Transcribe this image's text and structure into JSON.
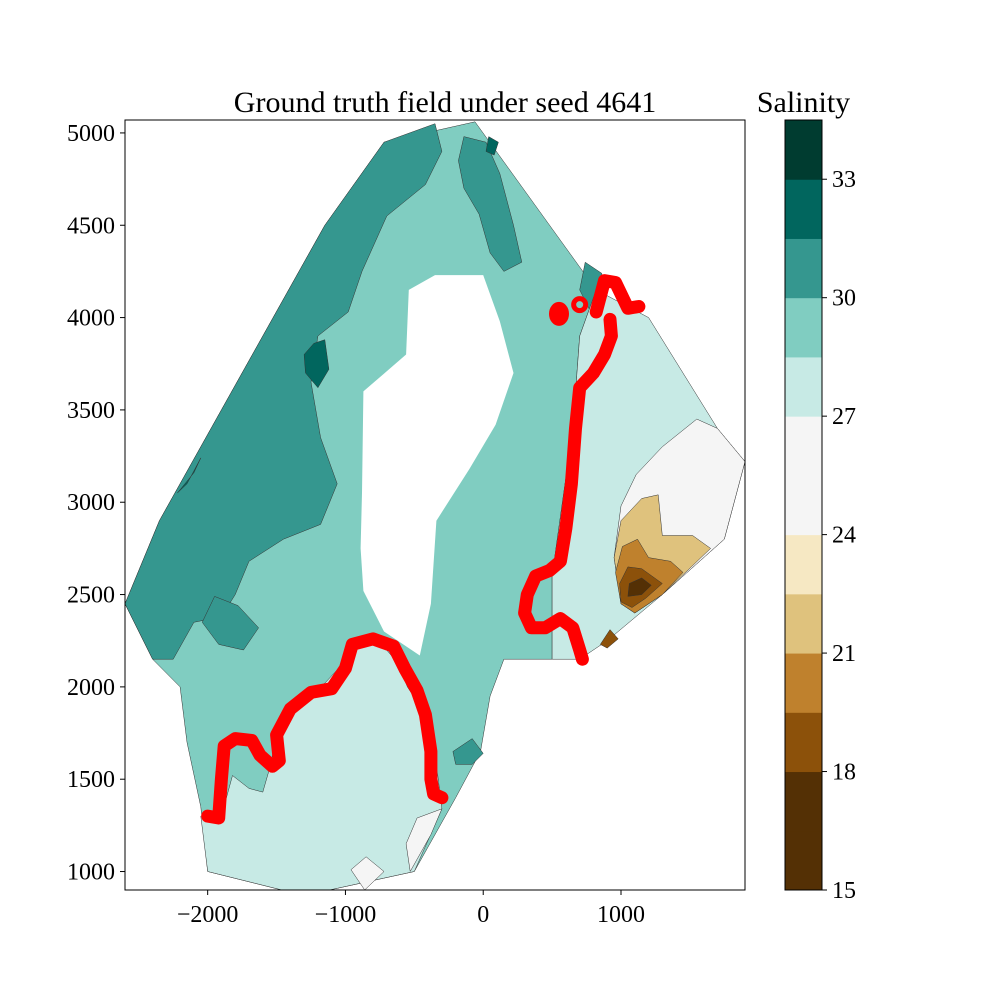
{
  "chart_data": {
    "type": "contourf",
    "title": "Ground truth field under seed 4641",
    "xlabel": "",
    "ylabel": "",
    "xlim": [
      -2600,
      1900
    ],
    "ylim": [
      900,
      5070
    ],
    "x_ticks": [
      -2000,
      -1000,
      0,
      1000
    ],
    "y_ticks": [
      1000,
      1500,
      2000,
      2500,
      3000,
      3500,
      4000,
      4500,
      5000
    ],
    "colorbar": {
      "title": "Salinity",
      "range": [
        15,
        34.5
      ],
      "ticks": [
        15,
        18,
        21,
        24,
        27,
        30,
        33
      ],
      "levels": [
        15,
        16.5,
        18,
        19.5,
        21,
        22.5,
        24,
        25.5,
        27,
        28.5,
        30,
        31.5,
        33,
        34.5
      ],
      "colors": [
        "#543005",
        "#8c510a",
        "#bf812d",
        "#dfc27d",
        "#f6e8c3",
        "#f5f5f5",
        "#c7eae5",
        "#80cdc1",
        "#35978f",
        "#01665e",
        "#003c30"
      ]
    },
    "domain_boundary": [
      [
        -2600,
        2450
      ],
      [
        -2350,
        2900
      ],
      [
        -1900,
        3500
      ],
      [
        -1150,
        4500
      ],
      [
        -720,
        4950
      ],
      [
        -60,
        5060
      ],
      [
        820,
        4150
      ],
      [
        1200,
        4000
      ],
      [
        1700,
        3400
      ],
      [
        1900,
        3220
      ],
      [
        1750,
        2800
      ],
      [
        1300,
        2500
      ],
      [
        900,
        2250
      ],
      [
        700,
        2150
      ],
      [
        150,
        2150
      ],
      [
        50,
        1950
      ],
      [
        -20,
        1650
      ],
      [
        -200,
        1400
      ],
      [
        -500,
        1000
      ],
      [
        -1300,
        870
      ],
      [
        -2000,
        1000
      ],
      [
        -2050,
        1350
      ],
      [
        -2150,
        1700
      ],
      [
        -2200,
        2000
      ],
      [
        -2400,
        2150
      ],
      [
        -2600,
        2450
      ]
    ],
    "white_hole": [
      [
        -540,
        4150
      ],
      [
        -350,
        4230
      ],
      [
        0,
        4230
      ],
      [
        120,
        3980
      ],
      [
        220,
        3700
      ],
      [
        90,
        3420
      ],
      [
        -100,
        3180
      ],
      [
        -340,
        2900
      ],
      [
        -380,
        2450
      ],
      [
        -460,
        2170
      ],
      [
        -720,
        2300
      ],
      [
        -870,
        2520
      ],
      [
        -890,
        2750
      ],
      [
        -880,
        3050
      ],
      [
        -870,
        3600
      ],
      [
        -560,
        3800
      ],
      [
        -540,
        4150
      ]
    ],
    "regions": [
      {
        "level_range": [
          27,
          28.5
        ],
        "color": "#80cdc1",
        "points": [
          [
            -2600,
            2450
          ],
          [
            -2350,
            2900
          ],
          [
            -1900,
            3500
          ],
          [
            -1150,
            4500
          ],
          [
            -720,
            4950
          ],
          [
            -60,
            5060
          ],
          [
            820,
            4150
          ],
          [
            700,
            3900
          ],
          [
            650,
            3400
          ],
          [
            500,
            2600
          ],
          [
            500,
            2150
          ],
          [
            150,
            2150
          ],
          [
            50,
            1950
          ],
          [
            -20,
            1650
          ],
          [
            -200,
            1400
          ],
          [
            -500,
            1000
          ],
          [
            -1300,
            870
          ],
          [
            -2000,
            1000
          ],
          [
            -2050,
            1350
          ],
          [
            -2150,
            1700
          ],
          [
            -2200,
            2000
          ],
          [
            -2400,
            2150
          ]
        ]
      },
      {
        "level_range": [
          28.5,
          30
        ],
        "color": "#35978f",
        "points": [
          [
            -2600,
            2450
          ],
          [
            -2350,
            2900
          ],
          [
            -1900,
            3500
          ],
          [
            -1150,
            4500
          ],
          [
            -720,
            4950
          ],
          [
            -350,
            5050
          ],
          [
            -300,
            4900
          ],
          [
            -420,
            4720
          ],
          [
            -700,
            4550
          ],
          [
            -880,
            4250
          ],
          [
            -980,
            4030
          ],
          [
            -1200,
            3900
          ],
          [
            -1250,
            3650
          ],
          [
            -1180,
            3350
          ],
          [
            -1060,
            3100
          ],
          [
            -1180,
            2880
          ],
          [
            -1450,
            2800
          ],
          [
            -1700,
            2680
          ],
          [
            -1800,
            2500
          ],
          [
            -1900,
            2380
          ],
          [
            -2100,
            2350
          ],
          [
            -2250,
            2150
          ],
          [
            -2400,
            2150
          ]
        ]
      },
      {
        "level_range": [
          28.5,
          30
        ],
        "color": "#35978f",
        "points": [
          [
            -140,
            4980
          ],
          [
            20,
            4950
          ],
          [
            120,
            4780
          ],
          [
            220,
            4500
          ],
          [
            280,
            4300
          ],
          [
            150,
            4250
          ],
          [
            50,
            4350
          ],
          [
            -30,
            4560
          ],
          [
            -140,
            4700
          ],
          [
            -180,
            4850
          ]
        ]
      },
      {
        "level_range": [
          28.5,
          30
        ],
        "color": "#35978f",
        "points": [
          [
            -1950,
            2490
          ],
          [
            -1780,
            2440
          ],
          [
            -1630,
            2320
          ],
          [
            -1740,
            2200
          ],
          [
            -1920,
            2230
          ],
          [
            -2040,
            2350
          ]
        ]
      },
      {
        "level_range": [
          28.5,
          30
        ],
        "color": "#35978f",
        "points": [
          [
            -220,
            1650
          ],
          [
            -80,
            1720
          ],
          [
            0,
            1640
          ],
          [
            -80,
            1580
          ],
          [
            -200,
            1580
          ]
        ]
      },
      {
        "level_range": [
          28.5,
          30
        ],
        "color": "#35978f",
        "points": [
          [
            740,
            4300
          ],
          [
            860,
            4240
          ],
          [
            900,
            4080
          ],
          [
            780,
            4030
          ],
          [
            700,
            4150
          ]
        ]
      },
      {
        "level_range": [
          30,
          31.5
        ],
        "color": "#01665e",
        "points": [
          [
            -1230,
            3860
          ],
          [
            -1150,
            3880
          ],
          [
            -1120,
            3720
          ],
          [
            -1200,
            3620
          ],
          [
            -1290,
            3700
          ],
          [
            -1300,
            3800
          ]
        ]
      },
      {
        "level_range": [
          30,
          31.5
        ],
        "color": "#01665e",
        "points": [
          [
            -2220,
            3050
          ],
          [
            -2150,
            3100
          ],
          [
            -2050,
            3240
          ],
          [
            -2100,
            3160
          ]
        ]
      },
      {
        "level_range": [
          30,
          31.5
        ],
        "color": "#01665e",
        "points": [
          [
            40,
            4980
          ],
          [
            110,
            4950
          ],
          [
            80,
            4880
          ],
          [
            20,
            4900
          ]
        ]
      },
      {
        "level_range": [
          25.5,
          27
        ],
        "color": "#c7eae5",
        "points": [
          [
            820,
            4150
          ],
          [
            1200,
            4000
          ],
          [
            1700,
            3400
          ],
          [
            1900,
            3220
          ],
          [
            1750,
            2800
          ],
          [
            1300,
            2500
          ],
          [
            900,
            2250
          ],
          [
            700,
            2150
          ],
          [
            500,
            2150
          ],
          [
            500,
            2600
          ],
          [
            650,
            3400
          ],
          [
            700,
            3900
          ]
        ]
      },
      {
        "level_range": [
          25.5,
          27
        ],
        "color": "#c7eae5",
        "points": [
          [
            -2000,
            1000
          ],
          [
            -1300,
            870
          ],
          [
            -500,
            1000
          ],
          [
            -300,
            1340
          ],
          [
            -330,
            1520
          ],
          [
            -380,
            1700
          ],
          [
            -420,
            1850
          ],
          [
            -550,
            2000
          ],
          [
            -620,
            2130
          ],
          [
            -760,
            2250
          ],
          [
            -900,
            2220
          ],
          [
            -1050,
            2100
          ],
          [
            -1200,
            1980
          ],
          [
            -1350,
            1950
          ],
          [
            -1480,
            1800
          ],
          [
            -1550,
            1560
          ],
          [
            -1600,
            1430
          ],
          [
            -1700,
            1450
          ],
          [
            -1820,
            1520
          ],
          [
            -1900,
            1300
          ],
          [
            -2050,
            1300
          ]
        ]
      },
      {
        "level_range": [
          24,
          25.5
        ],
        "color": "#f5f5f5",
        "points": [
          [
            1900,
            3220
          ],
          [
            1750,
            2800
          ],
          [
            1300,
            2500
          ],
          [
            1100,
            2400
          ],
          [
            1000,
            2450
          ],
          [
            950,
            2700
          ],
          [
            1000,
            2980
          ],
          [
            1110,
            3150
          ],
          [
            1300,
            3300
          ],
          [
            1550,
            3450
          ],
          [
            1700,
            3400
          ]
        ]
      },
      {
        "level_range": [
          24,
          25.5
        ],
        "color": "#f5f5f5",
        "points": [
          [
            -530,
            1000
          ],
          [
            -380,
            1200
          ],
          [
            -300,
            1340
          ],
          [
            -480,
            1290
          ],
          [
            -560,
            1150
          ]
        ]
      },
      {
        "level_range": [
          24,
          25.5
        ],
        "color": "#f5f5f5",
        "points": [
          [
            -960,
            1010
          ],
          [
            -850,
            1080
          ],
          [
            -720,
            1000
          ],
          [
            -860,
            900
          ]
        ]
      },
      {
        "level_range": [
          22.5,
          24
        ],
        "color": "#dfc27d",
        "points": [
          [
            1000,
            2450
          ],
          [
            950,
            2700
          ],
          [
            1000,
            2900
          ],
          [
            1150,
            3020
          ],
          [
            1270,
            3040
          ],
          [
            1300,
            2820
          ],
          [
            1520,
            2820
          ],
          [
            1650,
            2750
          ],
          [
            1300,
            2500
          ],
          [
            1100,
            2400
          ]
        ]
      },
      {
        "level_range": [
          21,
          22.5
        ],
        "color": "#bf812d",
        "points": [
          [
            1000,
            2450
          ],
          [
            960,
            2620
          ],
          [
            1010,
            2760
          ],
          [
            1120,
            2800
          ],
          [
            1200,
            2700
          ],
          [
            1360,
            2680
          ],
          [
            1450,
            2620
          ],
          [
            1300,
            2500
          ],
          [
            1100,
            2400
          ]
        ]
      },
      {
        "level_range": [
          19.5,
          21
        ],
        "color": "#8c510a",
        "points": [
          [
            1000,
            2460
          ],
          [
            990,
            2560
          ],
          [
            1050,
            2650
          ],
          [
            1150,
            2640
          ],
          [
            1300,
            2560
          ],
          [
            1180,
            2480
          ],
          [
            1080,
            2430
          ]
        ]
      },
      {
        "level_range": [
          16.5,
          18
        ],
        "color": "#543005",
        "points": [
          [
            1050,
            2490
          ],
          [
            1060,
            2560
          ],
          [
            1150,
            2590
          ],
          [
            1220,
            2550
          ],
          [
            1150,
            2500
          ]
        ]
      },
      {
        "level_range": [
          19.5,
          21
        ],
        "color": "#8c510a",
        "points": [
          [
            850,
            2230
          ],
          [
            920,
            2310
          ],
          [
            980,
            2260
          ],
          [
            900,
            2210
          ]
        ]
      }
    ],
    "red_line": [
      [
        [
          -2000,
          1300
        ],
        [
          -1920,
          1290
        ],
        [
          -1900,
          1500
        ],
        [
          -1880,
          1680
        ],
        [
          -1800,
          1720
        ],
        [
          -1680,
          1710
        ],
        [
          -1620,
          1630
        ],
        [
          -1530,
          1570
        ],
        [
          -1480,
          1600
        ],
        [
          -1500,
          1740
        ],
        [
          -1400,
          1880
        ],
        [
          -1250,
          1970
        ],
        [
          -1100,
          1990
        ],
        [
          -1000,
          2100
        ],
        [
          -950,
          2230
        ],
        [
          -800,
          2260
        ],
        [
          -650,
          2220
        ],
        [
          -570,
          2100
        ],
        [
          -480,
          1980
        ],
        [
          -420,
          1850
        ],
        [
          -380,
          1650
        ],
        [
          -380,
          1500
        ],
        [
          -360,
          1420
        ],
        [
          -300,
          1400
        ]
      ],
      [
        [
          820,
          4030
        ],
        [
          880,
          4200
        ],
        [
          960,
          4190
        ],
        [
          1050,
          4050
        ],
        [
          1130,
          4060
        ]
      ],
      [
        [
          920,
          3990
        ],
        [
          930,
          3900
        ],
        [
          880,
          3800
        ],
        [
          800,
          3700
        ],
        [
          700,
          3620
        ],
        [
          670,
          3400
        ],
        [
          640,
          3100
        ],
        [
          600,
          2860
        ],
        [
          560,
          2680
        ],
        [
          480,
          2630
        ],
        [
          380,
          2600
        ],
        [
          320,
          2500
        ],
        [
          300,
          2400
        ],
        [
          350,
          2320
        ],
        [
          450,
          2320
        ],
        [
          560,
          2370
        ],
        [
          650,
          2320
        ],
        [
          700,
          2200
        ],
        [
          720,
          2150
        ]
      ]
    ],
    "red_dots": [
      [
        550,
        4020
      ],
      [
        700,
        4070
      ]
    ]
  }
}
